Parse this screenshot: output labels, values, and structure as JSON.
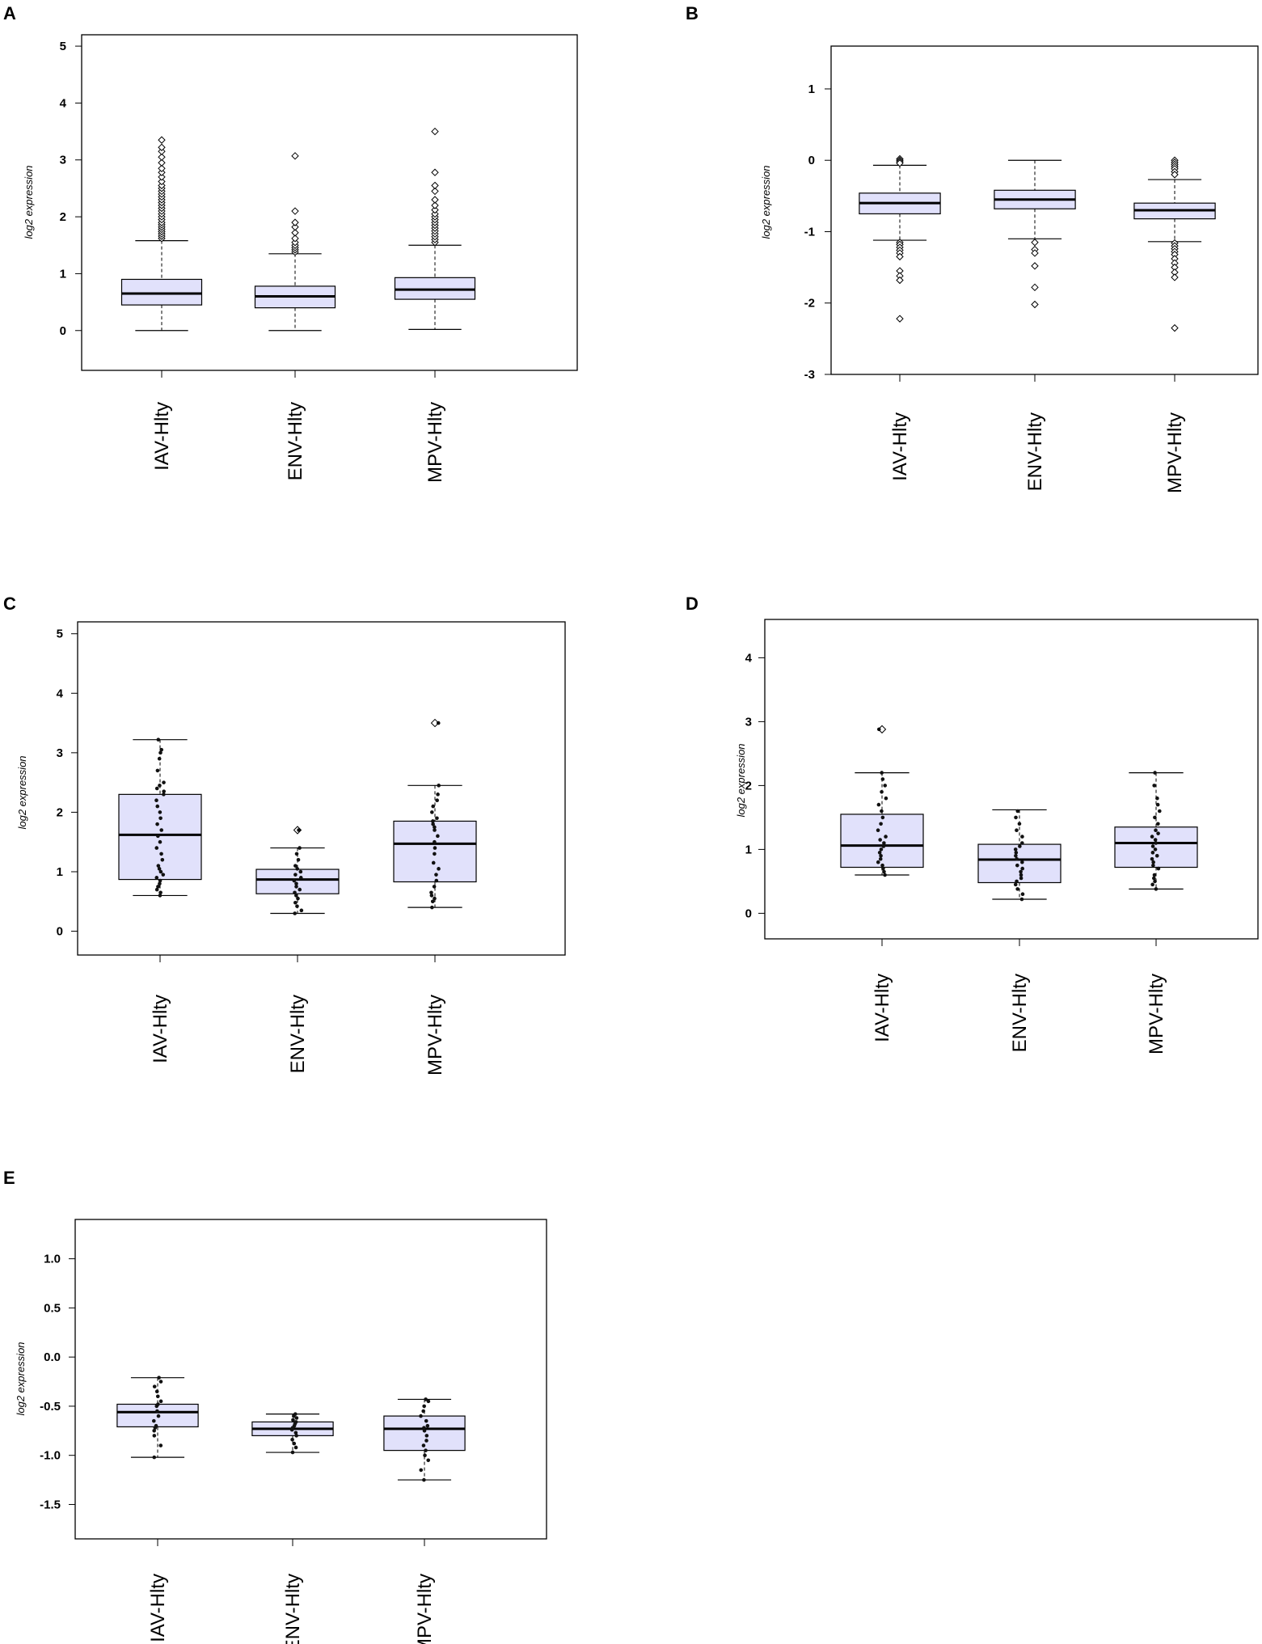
{
  "figure": {
    "colors": {
      "box_fill": "#e1e1fb",
      "stroke": "#000000",
      "background": "#ffffff"
    }
  },
  "chart_data": [
    {
      "id": "A",
      "panel_label": "A",
      "type": "box",
      "ylabel": "log2 expression",
      "categories": [
        "IAV-Hlty",
        "ENV-Hlty",
        "MPV-Hlty"
      ],
      "ylim": [
        -0.7,
        5.2
      ],
      "yticks": [
        0,
        1,
        2,
        3,
        4,
        5
      ],
      "ytick_labels": [
        "0",
        "1",
        "2",
        "3",
        "4",
        "5"
      ],
      "boxes": [
        {
          "min": 0.0,
          "q1": 0.45,
          "median": 0.65,
          "q3": 0.9,
          "max": 1.58
        },
        {
          "min": 0.0,
          "q1": 0.4,
          "median": 0.6,
          "q3": 0.78,
          "max": 1.35
        },
        {
          "min": 0.02,
          "q1": 0.55,
          "median": 0.72,
          "q3": 0.93,
          "max": 1.5
        }
      ],
      "outliers": [
        [
          1.62,
          1.66,
          1.7,
          1.74,
          1.78,
          1.82,
          1.86,
          1.9,
          1.95,
          2.0,
          2.05,
          2.1,
          2.15,
          2.2,
          2.25,
          2.3,
          2.35,
          2.4,
          2.45,
          2.5,
          2.55,
          2.62,
          2.7,
          2.78,
          2.85,
          2.95,
          3.05,
          3.15,
          3.22,
          3.35
        ],
        [
          1.38,
          1.42,
          1.46,
          1.5,
          1.55,
          1.62,
          1.72,
          1.82,
          1.9,
          2.1,
          3.07
        ],
        [
          1.55,
          1.6,
          1.65,
          1.7,
          1.75,
          1.8,
          1.85,
          1.9,
          1.95,
          2.0,
          2.05,
          2.12,
          2.2,
          2.3,
          2.45,
          2.55,
          2.78,
          3.5
        ]
      ],
      "point_style": "outlier-diamonds"
    },
    {
      "id": "B",
      "panel_label": "B",
      "type": "box",
      "ylabel": "log2 expression",
      "categories": [
        "IAV-Hlty",
        "ENV-Hlty",
        "MPV-Hlty"
      ],
      "ylim": [
        -3.0,
        1.6
      ],
      "yticks": [
        1,
        0,
        -1,
        -2,
        -3
      ],
      "ytick_labels": [
        "1",
        "0",
        "-1",
        "-2",
        "-3"
      ],
      "boxes": [
        {
          "min": -1.12,
          "q1": -0.75,
          "median": -0.6,
          "q3": -0.46,
          "max": -0.07
        },
        {
          "min": -1.1,
          "q1": -0.68,
          "median": -0.55,
          "q3": -0.42,
          "max": 0.0
        },
        {
          "min": -1.14,
          "q1": -0.82,
          "median": -0.7,
          "q3": -0.6,
          "max": -0.27
        }
      ],
      "outliers": [
        [
          0.02,
          0.0,
          -0.02,
          -0.04,
          -1.15,
          -1.18,
          -1.22,
          -1.26,
          -1.3,
          -1.35,
          -1.55,
          -1.62,
          -1.68,
          -2.22
        ],
        [
          -1.15,
          -1.25,
          -1.3,
          -1.48,
          -1.78,
          -2.02
        ],
        [
          0.0,
          -0.03,
          -0.06,
          -0.09,
          -0.12,
          -0.16,
          -0.2,
          -1.16,
          -1.2,
          -1.24,
          -1.28,
          -1.32,
          -1.38,
          -1.44,
          -1.5,
          -1.57,
          -1.64,
          -2.35
        ]
      ],
      "point_style": "outlier-diamonds"
    },
    {
      "id": "C",
      "panel_label": "C",
      "type": "box",
      "ylabel": "log2 expression",
      "categories": [
        "IAV-Hlty",
        "ENV-Hlty",
        "MPV-Hlty"
      ],
      "ylim": [
        -0.4,
        5.2
      ],
      "yticks": [
        0,
        1,
        2,
        3,
        4,
        5
      ],
      "ytick_labels": [
        "0",
        "1",
        "2",
        "3",
        "4",
        "5"
      ],
      "boxes": [
        {
          "min": 0.6,
          "q1": 0.87,
          "median": 1.62,
          "q3": 2.3,
          "max": 3.22
        },
        {
          "min": 0.3,
          "q1": 0.63,
          "median": 0.87,
          "q3": 1.04,
          "max": 1.4
        },
        {
          "min": 0.4,
          "q1": 0.83,
          "median": 1.47,
          "q3": 1.85,
          "max": 2.45
        }
      ],
      "points": [
        [
          0.6,
          0.65,
          0.7,
          0.75,
          0.8,
          0.85,
          0.9,
          0.95,
          1.0,
          1.05,
          1.1,
          1.2,
          1.3,
          1.4,
          1.5,
          1.6,
          1.7,
          1.8,
          1.9,
          2.0,
          2.1,
          2.2,
          2.3,
          2.35,
          2.4,
          2.45,
          2.5,
          2.7,
          2.9,
          3.0,
          3.05,
          3.22
        ],
        [
          0.3,
          0.35,
          0.42,
          0.48,
          0.55,
          0.6,
          0.65,
          0.7,
          0.75,
          0.8,
          0.85,
          0.9,
          0.95,
          1.0,
          1.05,
          1.1,
          1.2,
          1.3,
          1.4,
          1.7
        ],
        [
          0.4,
          0.5,
          0.55,
          0.6,
          0.65,
          0.75,
          0.85,
          0.95,
          1.05,
          1.15,
          1.3,
          1.4,
          1.5,
          1.6,
          1.7,
          1.75,
          1.8,
          1.85,
          1.9,
          2.0,
          2.1,
          2.2,
          2.3,
          2.45,
          3.5
        ]
      ],
      "outliers": [
        [],
        [
          1.7
        ],
        [
          3.5
        ]
      ],
      "point_style": "jittered-dots"
    },
    {
      "id": "D",
      "panel_label": "D",
      "type": "box",
      "ylabel": "log2 expression",
      "categories": [
        "IAV-Hlty",
        "ENV-Hlty",
        "MPV-Hlty"
      ],
      "ylim": [
        -0.4,
        4.6
      ],
      "yticks": [
        0,
        1,
        2,
        3,
        4
      ],
      "ytick_labels": [
        "0",
        "1",
        "2",
        "3",
        "4"
      ],
      "boxes": [
        {
          "min": 0.6,
          "q1": 0.72,
          "median": 1.06,
          "q3": 1.55,
          "max": 2.2
        },
        {
          "min": 0.22,
          "q1": 0.48,
          "median": 0.84,
          "q3": 1.08,
          "max": 1.62
        },
        {
          "min": 0.38,
          "q1": 0.72,
          "median": 1.1,
          "q3": 1.35,
          "max": 2.2
        }
      ],
      "points": [
        [
          0.6,
          0.65,
          0.7,
          0.75,
          0.8,
          0.85,
          0.9,
          0.95,
          1.0,
          1.05,
          1.1,
          1.15,
          1.2,
          1.3,
          1.4,
          1.5,
          1.6,
          1.7,
          1.8,
          1.9,
          2.0,
          2.1,
          2.2,
          2.88
        ],
        [
          0.22,
          0.3,
          0.38,
          0.45,
          0.5,
          0.55,
          0.6,
          0.65,
          0.7,
          0.75,
          0.8,
          0.85,
          0.9,
          0.95,
          1.0,
          1.05,
          1.1,
          1.2,
          1.3,
          1.4,
          1.5,
          1.6
        ],
        [
          0.38,
          0.45,
          0.5,
          0.55,
          0.6,
          0.7,
          0.75,
          0.8,
          0.85,
          0.9,
          0.95,
          1.0,
          1.05,
          1.1,
          1.15,
          1.2,
          1.25,
          1.3,
          1.4,
          1.5,
          1.6,
          1.7,
          1.8,
          2.0,
          2.2
        ]
      ],
      "outliers": [
        [
          2.88
        ],
        [],
        []
      ],
      "point_style": "jittered-dots"
    },
    {
      "id": "E",
      "panel_label": "E",
      "type": "box",
      "ylabel": "log2 expression",
      "categories": [
        "IAV-Hlty",
        "ENV-Hlty",
        "MPV-Hlty"
      ],
      "ylim": [
        -1.85,
        1.4
      ],
      "yticks": [
        1.0,
        0.5,
        0.0,
        -0.5,
        -1.0,
        -1.5
      ],
      "ytick_labels": [
        "1.0",
        "0.5",
        "0.0",
        "-0.5",
        "-1.0",
        "-1.5"
      ],
      "boxes": [
        {
          "min": -1.02,
          "q1": -0.71,
          "median": -0.56,
          "q3": -0.48,
          "max": -0.21
        },
        {
          "min": -0.97,
          "q1": -0.8,
          "median": -0.73,
          "q3": -0.66,
          "max": -0.58
        },
        {
          "min": -1.25,
          "q1": -0.95,
          "median": -0.73,
          "q3": -0.6,
          "max": -0.43
        }
      ],
      "points": [
        [
          -1.02,
          -0.9,
          -0.8,
          -0.75,
          -0.72,
          -0.7,
          -0.65,
          -0.6,
          -0.55,
          -0.5,
          -0.48,
          -0.45,
          -0.4,
          -0.35,
          -0.3,
          -0.25,
          -0.21
        ],
        [
          -0.97,
          -0.92,
          -0.88,
          -0.84,
          -0.8,
          -0.77,
          -0.74,
          -0.72,
          -0.7,
          -0.68,
          -0.66,
          -0.64,
          -0.62,
          -0.6,
          -0.58
        ],
        [
          -1.25,
          -1.15,
          -1.05,
          -1.0,
          -0.95,
          -0.9,
          -0.85,
          -0.8,
          -0.75,
          -0.72,
          -0.7,
          -0.65,
          -0.6,
          -0.55,
          -0.5,
          -0.45,
          -0.43
        ]
      ],
      "outliers": [
        [],
        [],
        []
      ],
      "point_style": "jittered-dots"
    }
  ]
}
